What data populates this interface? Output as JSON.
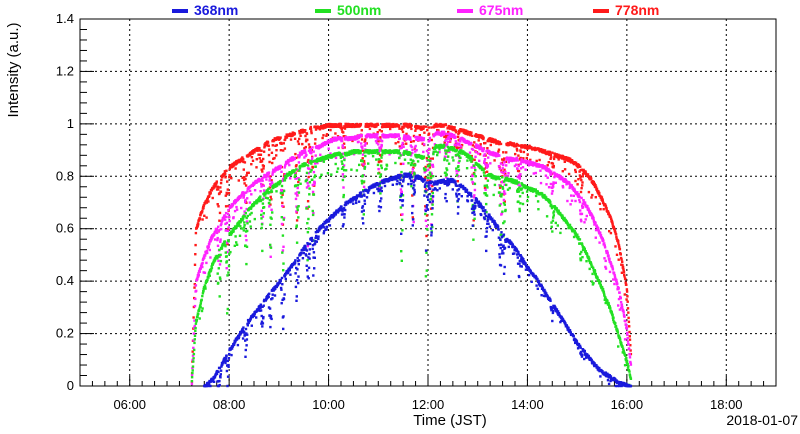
{
  "chart_data": {
    "type": "scatter",
    "xlabel": "Time (JST)",
    "ylabel": "Intensity (a.u.)",
    "date_label": "2018-01-07",
    "xlim": [
      300,
      1140
    ],
    "ylim": [
      0,
      1.4
    ],
    "grid": true,
    "legend_position": "top",
    "x_ticks": [
      {
        "value": 360,
        "label": "06:00"
      },
      {
        "value": 480,
        "label": "08:00"
      },
      {
        "value": 600,
        "label": "10:00"
      },
      {
        "value": 720,
        "label": "12:00"
      },
      {
        "value": 840,
        "label": "14:00"
      },
      {
        "value": 960,
        "label": "16:00"
      },
      {
        "value": 1080,
        "label": "18:00"
      }
    ],
    "y_ticks": [
      {
        "value": 0,
        "label": "0"
      },
      {
        "value": 0.2,
        "label": "0.2"
      },
      {
        "value": 0.4,
        "label": "0.4"
      },
      {
        "value": 0.6,
        "label": "0.6"
      },
      {
        "value": 0.8,
        "label": "0.8"
      },
      {
        "value": 1.0,
        "label": "1"
      },
      {
        "value": 1.2,
        "label": "1.2"
      },
      {
        "value": 1.4,
        "label": "1.4"
      }
    ],
    "series": [
      {
        "name": "368nm",
        "color": "#1a1adc",
        "x": [
          450,
          460,
          470,
          480,
          490,
          500,
          510,
          520,
          530,
          540,
          550,
          560,
          570,
          580,
          590,
          600,
          610,
          620,
          630,
          640,
          650,
          660,
          670,
          680,
          690,
          700,
          710,
          720,
          730,
          740,
          750,
          760,
          770,
          780,
          790,
          800,
          810,
          820,
          830,
          840,
          850,
          860,
          870,
          880,
          890,
          900,
          910,
          920,
          930,
          940,
          950,
          960,
          965
        ],
        "y": [
          0.0,
          0.03,
          0.08,
          0.14,
          0.19,
          0.24,
          0.28,
          0.32,
          0.36,
          0.4,
          0.44,
          0.48,
          0.53,
          0.57,
          0.61,
          0.64,
          0.67,
          0.7,
          0.72,
          0.74,
          0.76,
          0.78,
          0.79,
          0.8,
          0.81,
          0.81,
          0.8,
          0.78,
          0.78,
          0.79,
          0.79,
          0.77,
          0.74,
          0.71,
          0.67,
          0.63,
          0.59,
          0.55,
          0.51,
          0.46,
          0.42,
          0.37,
          0.32,
          0.27,
          0.22,
          0.17,
          0.13,
          0.09,
          0.06,
          0.04,
          0.02,
          0.01,
          0.0
        ]
      },
      {
        "name": "500nm",
        "color": "#22e022",
        "x": [
          435,
          440,
          450,
          460,
          470,
          480,
          490,
          500,
          510,
          520,
          530,
          540,
          550,
          560,
          570,
          580,
          590,
          600,
          610,
          620,
          630,
          640,
          650,
          660,
          670,
          680,
          690,
          700,
          710,
          720,
          730,
          740,
          750,
          760,
          770,
          780,
          790,
          800,
          810,
          820,
          830,
          840,
          850,
          860,
          870,
          880,
          890,
          900,
          910,
          920,
          930,
          940,
          950,
          960,
          965
        ],
        "y": [
          0.02,
          0.25,
          0.38,
          0.47,
          0.53,
          0.58,
          0.62,
          0.66,
          0.7,
          0.73,
          0.76,
          0.78,
          0.81,
          0.83,
          0.85,
          0.86,
          0.87,
          0.88,
          0.89,
          0.89,
          0.9,
          0.9,
          0.9,
          0.9,
          0.9,
          0.9,
          0.9,
          0.89,
          0.88,
          0.87,
          0.92,
          0.92,
          0.91,
          0.9,
          0.88,
          0.85,
          0.82,
          0.8,
          0.8,
          0.79,
          0.78,
          0.76,
          0.75,
          0.73,
          0.7,
          0.66,
          0.62,
          0.58,
          0.52,
          0.45,
          0.38,
          0.3,
          0.2,
          0.1,
          0.03
        ]
      },
      {
        "name": "675nm",
        "color": "#ff22ff",
        "x": [
          435,
          440,
          450,
          460,
          470,
          480,
          490,
          500,
          510,
          520,
          530,
          540,
          550,
          560,
          570,
          580,
          590,
          600,
          610,
          620,
          630,
          640,
          650,
          660,
          670,
          680,
          690,
          700,
          710,
          720,
          730,
          740,
          750,
          760,
          770,
          780,
          790,
          800,
          810,
          820,
          830,
          840,
          850,
          860,
          870,
          880,
          890,
          900,
          910,
          920,
          930,
          940,
          950,
          960,
          965
        ],
        "y": [
          0.02,
          0.4,
          0.5,
          0.58,
          0.63,
          0.68,
          0.72,
          0.75,
          0.78,
          0.8,
          0.82,
          0.84,
          0.86,
          0.88,
          0.9,
          0.91,
          0.92,
          0.94,
          0.95,
          0.95,
          0.95,
          0.96,
          0.96,
          0.96,
          0.96,
          0.96,
          0.96,
          0.95,
          0.95,
          0.94,
          0.97,
          0.97,
          0.96,
          0.95,
          0.93,
          0.92,
          0.9,
          0.89,
          0.88,
          0.87,
          0.87,
          0.86,
          0.85,
          0.84,
          0.82,
          0.8,
          0.78,
          0.74,
          0.7,
          0.64,
          0.57,
          0.48,
          0.38,
          0.22,
          0.08
        ]
      },
      {
        "name": "778nm",
        "color": "#ff1a1a",
        "x": [
          435,
          440,
          450,
          460,
          470,
          480,
          490,
          500,
          510,
          520,
          530,
          540,
          550,
          560,
          570,
          580,
          590,
          600,
          610,
          620,
          630,
          640,
          650,
          660,
          670,
          680,
          690,
          700,
          710,
          720,
          730,
          740,
          750,
          760,
          770,
          780,
          790,
          800,
          810,
          820,
          830,
          840,
          850,
          860,
          870,
          880,
          890,
          900,
          910,
          920,
          930,
          940,
          950,
          960,
          965
        ],
        "y": [
          0.02,
          0.6,
          0.7,
          0.76,
          0.8,
          0.84,
          0.86,
          0.88,
          0.9,
          0.92,
          0.94,
          0.95,
          0.96,
          0.97,
          0.98,
          0.99,
          0.99,
          1.0,
          1.0,
          1.0,
          1.0,
          1.0,
          1.0,
          1.0,
          1.0,
          1.0,
          1.0,
          1.0,
          0.99,
          0.99,
          1.0,
          1.0,
          0.99,
          0.98,
          0.97,
          0.96,
          0.95,
          0.94,
          0.93,
          0.93,
          0.92,
          0.92,
          0.91,
          0.9,
          0.89,
          0.88,
          0.87,
          0.85,
          0.82,
          0.78,
          0.72,
          0.65,
          0.55,
          0.38,
          0.12
        ]
      }
    ],
    "dips": [
      {
        "x": 468,
        "depth": 0.22
      },
      {
        "x": 478,
        "depth": 0.3
      },
      {
        "x": 500,
        "depth": 0.25
      },
      {
        "x": 520,
        "depth": 0.2
      },
      {
        "x": 530,
        "depth": 0.32
      },
      {
        "x": 545,
        "depth": 0.38
      },
      {
        "x": 562,
        "depth": 0.35
      },
      {
        "x": 575,
        "depth": 0.4
      },
      {
        "x": 582,
        "depth": 0.3
      },
      {
        "x": 618,
        "depth": 0.18
      },
      {
        "x": 642,
        "depth": 0.3
      },
      {
        "x": 662,
        "depth": 0.28
      },
      {
        "x": 688,
        "depth": 0.45
      },
      {
        "x": 702,
        "depth": 0.4
      },
      {
        "x": 718,
        "depth": 0.55
      },
      {
        "x": 724,
        "depth": 0.45
      },
      {
        "x": 742,
        "depth": 0.2
      },
      {
        "x": 756,
        "depth": 0.25
      },
      {
        "x": 775,
        "depth": 0.35
      },
      {
        "x": 790,
        "depth": 0.3
      },
      {
        "x": 808,
        "depth": 0.4
      },
      {
        "x": 812,
        "depth": 0.28
      },
      {
        "x": 830,
        "depth": 0.18
      },
      {
        "x": 870,
        "depth": 0.12
      },
      {
        "x": 905,
        "depth": 0.1
      }
    ]
  }
}
